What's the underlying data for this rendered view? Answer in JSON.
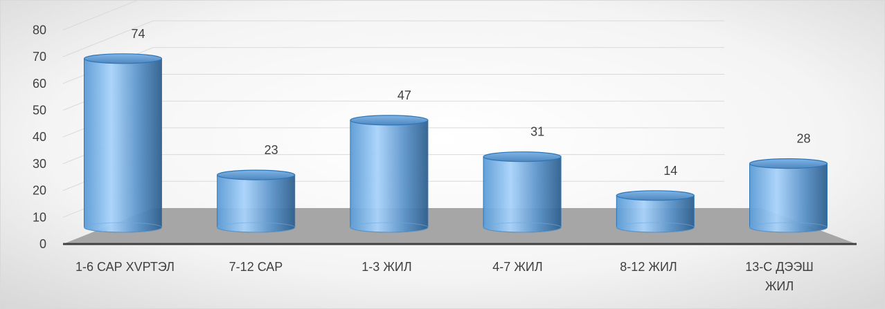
{
  "chart_data": {
    "type": "bar",
    "style": "3d-cylinder",
    "categories": [
      "1-6 САР ХVРТЭЛ",
      "7-12 САР",
      "1-3 ЖИЛ",
      "4-7 ЖИЛ",
      "8-12 ЖИЛ",
      "13-С ДЭЭШ ЖИЛ"
    ],
    "category_lines": [
      [
        "1-6 САР ХVРТЭЛ"
      ],
      [
        "7-12 САР"
      ],
      [
        "1-3 ЖИЛ"
      ],
      [
        "4-7 ЖИЛ"
      ],
      [
        "8-12 ЖИЛ"
      ],
      [
        "13-С ДЭЭШ",
        "ЖИЛ"
      ]
    ],
    "values": [
      74,
      23,
      47,
      31,
      14,
      28
    ],
    "data_labels": [
      "74",
      "23",
      "47",
      "31",
      "14",
      "28"
    ],
    "y_ticks": [
      "0",
      "10",
      "20",
      "30",
      "40",
      "50",
      "60",
      "70",
      "80"
    ],
    "ylim": [
      0,
      80
    ],
    "grid": true,
    "legend": "none",
    "colors": {
      "bar": "#5b9bd5",
      "bar_light": "#a9d3fb",
      "bar_dark": "#2e5f8e",
      "floor": "#a6a6a6",
      "axis": "#404040",
      "grid": "#d9d9d9"
    }
  }
}
